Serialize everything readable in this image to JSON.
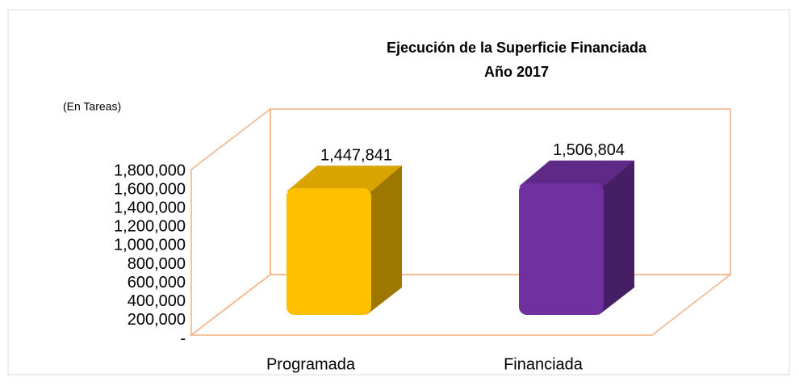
{
  "chart_data": {
    "type": "bar3d",
    "title": "Ejecución de la Superficie Financiada",
    "subtitle": "Año 2017",
    "y_label": "(En Tareas)",
    "categories": [
      "Programada",
      "Financiada"
    ],
    "values": [
      1447841,
      1506804
    ],
    "value_labels": [
      "1,447,841",
      "1,506,804"
    ],
    "colors": [
      "#ffc000",
      "#7030a0"
    ],
    "ylim": [
      0,
      1800000
    ],
    "yticks": [
      {
        "value": 0,
        "label": "-"
      },
      {
        "value": 200000,
        "label": "200,000"
      },
      {
        "value": 400000,
        "label": "400,000"
      },
      {
        "value": 600000,
        "label": "600,000"
      },
      {
        "value": 800000,
        "label": "800,000"
      },
      {
        "value": 1000000,
        "label": "1,000,000"
      },
      {
        "value": 1200000,
        "label": "1,200,000"
      },
      {
        "value": 1400000,
        "label": "1,400,000"
      },
      {
        "value": 1600000,
        "label": "1,600,000"
      },
      {
        "value": 1800000,
        "label": "1,800,000"
      }
    ]
  }
}
